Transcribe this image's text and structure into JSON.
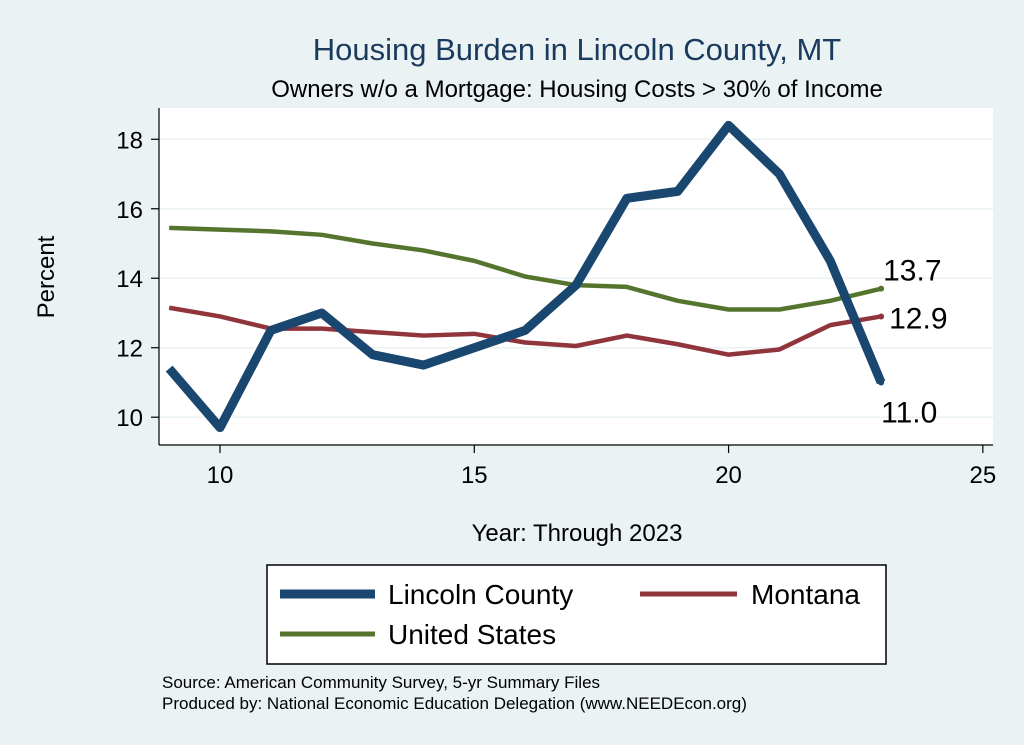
{
  "chart_data": {
    "type": "line",
    "title": "Housing Burden in Lincoln County, MT",
    "subtitle": "Owners w/o a Mortgage: Housing Costs > 30% of Income",
    "xlabel": "Year: Through 2023",
    "ylabel": "Percent",
    "xlim": [
      8.8,
      25.2
    ],
    "ylim": [
      9.2,
      18.9
    ],
    "xticks": [
      10,
      15,
      20,
      25
    ],
    "yticks": [
      10,
      12,
      14,
      16,
      18
    ],
    "grid": true,
    "x": [
      9,
      10,
      11,
      12,
      13,
      14,
      15,
      16,
      17,
      18,
      19,
      20,
      21,
      22,
      23
    ],
    "series": [
      {
        "name": "Lincoln County",
        "color": "#1a476f",
        "values": [
          11.4,
          9.7,
          12.5,
          13.0,
          11.8,
          11.5,
          12.0,
          12.5,
          13.8,
          16.3,
          16.5,
          18.4,
          17.0,
          14.5,
          11.0
        ],
        "end_label": "11.0"
      },
      {
        "name": "Montana",
        "color": "#90353b",
        "values": [
          13.15,
          12.9,
          12.55,
          12.55,
          12.45,
          12.35,
          12.4,
          12.15,
          12.05,
          12.35,
          12.1,
          11.8,
          11.95,
          12.65,
          12.9
        ],
        "end_label": "12.9"
      },
      {
        "name": "United States",
        "color": "#55752f",
        "values": [
          15.45,
          15.4,
          15.35,
          15.25,
          15.0,
          14.8,
          14.5,
          14.05,
          13.8,
          13.75,
          13.35,
          13.1,
          13.1,
          13.35,
          13.7
        ],
        "end_label": "13.7"
      }
    ],
    "legend": {
      "position": "bottom",
      "entries": [
        "Lincoln County",
        "Montana",
        "United States"
      ]
    },
    "notes": [
      "Source: American Community Survey, 5-yr Summary Files",
      "Produced by: National Economic Education Delegation (www.NEEDEcon.org)"
    ]
  }
}
